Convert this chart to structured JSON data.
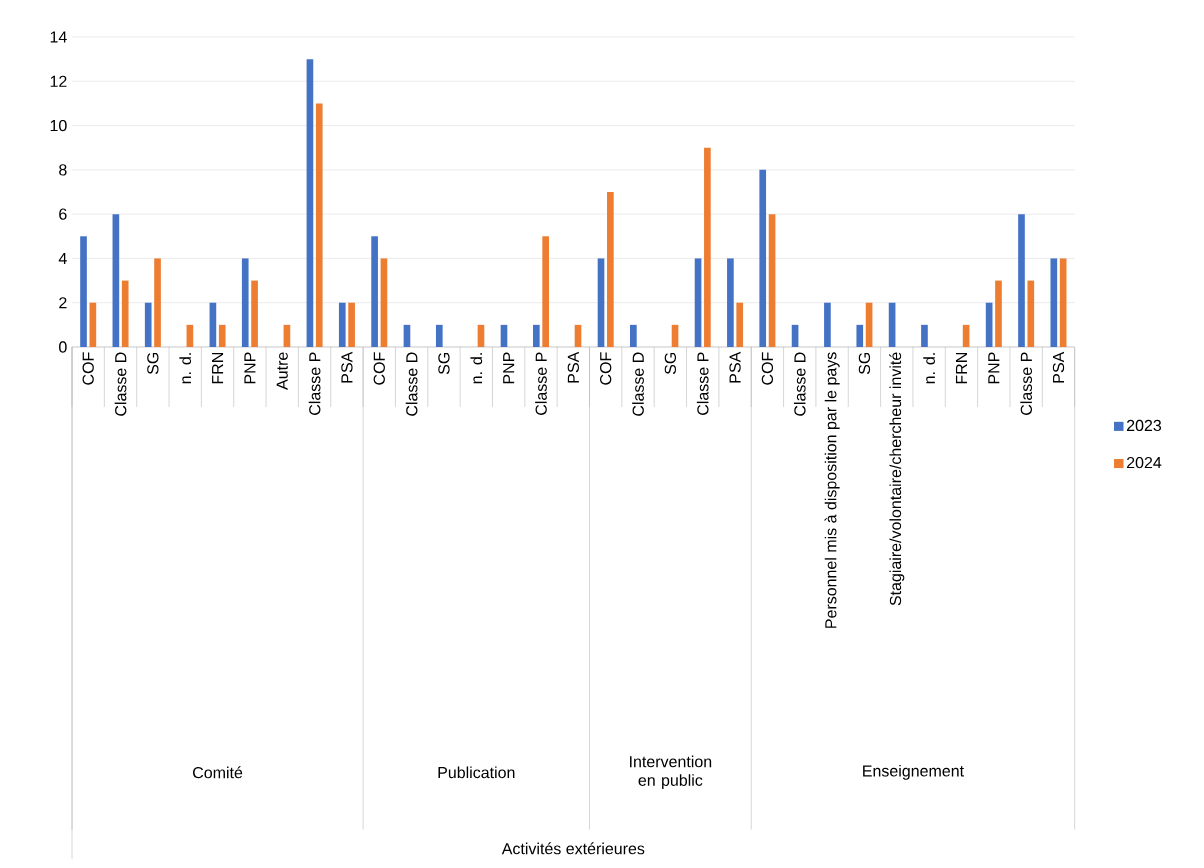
{
  "chart_data": {
    "type": "bar",
    "categories": [
      "COF",
      "Classe D",
      "SG",
      "n. d.",
      "FRN",
      "PNP",
      "Autre",
      "Classe P",
      "PSA",
      "COF",
      "Classe D",
      "SG",
      "n. d.",
      "PNP",
      "Classe P",
      "PSA",
      "COF",
      "Classe D",
      "SG",
      "Classe P",
      "PSA",
      "COF",
      "Classe D",
      "Personnel mis à disposition par le pays",
      "SG",
      "Stagiaire/volontaire/chercheur invité",
      "n. d.",
      "FRN",
      "PNP",
      "Classe P",
      "PSA"
    ],
    "series": [
      {
        "name": "2023",
        "color": "#4472c4",
        "values": [
          5,
          6,
          2,
          null,
          2,
          4,
          null,
          13,
          2,
          5,
          1,
          1,
          null,
          1,
          1,
          null,
          4,
          1,
          null,
          4,
          4,
          8,
          1,
          2,
          1,
          2,
          1,
          null,
          2,
          6,
          4
        ]
      },
      {
        "name": "2024",
        "color": "#ed7d31",
        "values": [
          2,
          3,
          4,
          1,
          1,
          3,
          1,
          11,
          2,
          4,
          null,
          null,
          1,
          null,
          5,
          1,
          7,
          null,
          1,
          9,
          2,
          6,
          null,
          null,
          2,
          null,
          null,
          1,
          3,
          3,
          4
        ]
      }
    ],
    "annotations": [
      "Comité",
      "Publication",
      "Intervention en public",
      "Enseignement",
      "Activités extérieures"
    ],
    "ylim": [
      0,
      14
    ],
    "yticks": [
      0,
      2,
      4,
      6,
      8,
      10,
      12,
      14
    ],
    "grid": "y",
    "legend": "right"
  }
}
